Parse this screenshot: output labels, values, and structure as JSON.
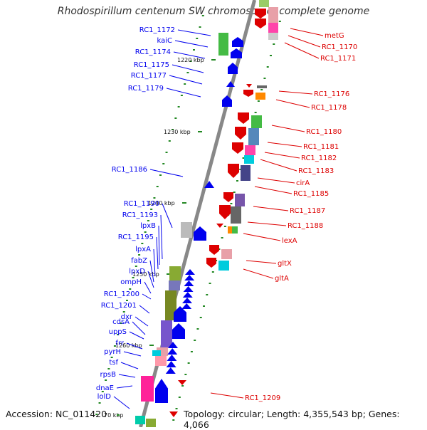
{
  "title": "Rhodospirillum centenum SW chromosome, complete genome",
  "footer": {
    "accession": "Accession: NC_011420",
    "topology": "Topology: circular; Length: 4,355,543 bp; Genes: 4,066"
  },
  "scale_labels": [
    "1220 kbp",
    "1230 kbp",
    "1240 kbp",
    "1250 kbp",
    "1260 kbp",
    "70 kbp"
  ],
  "colors": {
    "forward": "#0000ee",
    "reverse": "#dd0000",
    "axis": "#888888",
    "tick": "#228822"
  },
  "left_labels": [
    "RC1_1172",
    "kaiC",
    "RC1_1174",
    "RC1_1175",
    "RC1_1177",
    "RC1_1179",
    "RC1_1186",
    "RC1_1190",
    "RC1_1193",
    "lpxB",
    "RC1_1195",
    "lpxA",
    "fabZ",
    "lpxD",
    "ompH",
    "RC1_1200",
    "RC1_1201",
    "dxr",
    "cdsA",
    "uppS",
    "frr",
    "pyrH",
    "tsf",
    "rpsB",
    "dnaE",
    "lolD"
  ],
  "right_labels": [
    "metG",
    "RC1_1170",
    "RC1_1171",
    "RC1_1176",
    "RC1_1178",
    "RC1_1180",
    "RC1_1181",
    "RC1_1182",
    "RC1_1183",
    "cirA",
    "RC1_1185",
    "RC1_1187",
    "RC1_1188",
    "lexA",
    "gltX",
    "gltA",
    "RC1_1209"
  ]
}
